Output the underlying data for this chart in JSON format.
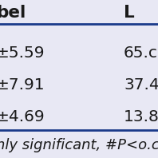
{
  "bg_color": "#e8e8f4",
  "header_line_color": "#1a3a8a",
  "footer_line_color": "#1a3a8a",
  "header_text_left": "bel",
  "header_text_right": "L",
  "rows": [
    {
      "left": "±5.59",
      "right": "65.c"
    },
    {
      "left": "±7.91",
      "right": "37.4"
    },
    {
      "left": "±4.69",
      "right": "13.8"
    }
  ],
  "footer_text": "nly significant, #P<o.c",
  "text_color": "#1a1a1a",
  "font_size": 14.5,
  "header_font_size": 15.5,
  "footer_font_size": 13.0,
  "figsize": [
    1.98,
    1.98
  ],
  "dpi": 100
}
